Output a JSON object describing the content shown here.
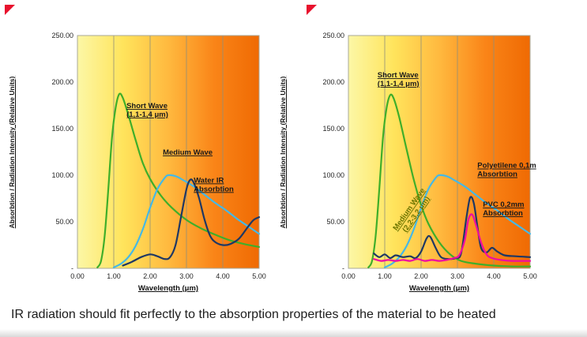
{
  "caption": "IR radiation should fit perfectly to the absorption properties of the material to be heated",
  "decor": {
    "corner_marker_color": "#e8112d"
  },
  "chart_data": [
    {
      "type": "line",
      "title": "",
      "xlabel": "Wavelength (μm)",
      "ylabel": "Absorbtion / Radiation Intensity (Relative Units)",
      "xlim": [
        0,
        5
      ],
      "ylim": [
        0,
        250
      ],
      "grid": "vertical",
      "grid_x": [
        1,
        2,
        3,
        4
      ],
      "x_ticks": {
        "labels": [
          "0.00",
          "1.00",
          "2.00",
          "3.00",
          "4.00",
          "5.00"
        ],
        "values": [
          0,
          1,
          2,
          3,
          4,
          5
        ]
      },
      "y_ticks": {
        "labels": [
          "250.00",
          "200.00",
          "150.00",
          "100.00",
          "50.00",
          "-"
        ],
        "values": [
          250,
          200,
          150,
          100,
          50,
          0
        ]
      },
      "background_gradient": [
        "#fcf7a6",
        "#ffe45c",
        "#ffb93f",
        "#fa8518",
        "#ef6a03"
      ],
      "series": [
        {
          "name": "Short Wave (1,1-1,4 μm)",
          "color": "#3fae2a",
          "points": [
            [
              0.55,
              1
            ],
            [
              0.65,
              8
            ],
            [
              0.75,
              35
            ],
            [
              0.85,
              85
            ],
            [
              0.95,
              140
            ],
            [
              1.05,
              172
            ],
            [
              1.15,
              187
            ],
            [
              1.25,
              183
            ],
            [
              1.4,
              165
            ],
            [
              1.6,
              138
            ],
            [
              1.8,
              113
            ],
            [
              2.0,
              96
            ],
            [
              2.3,
              78
            ],
            [
              2.6,
              65
            ],
            [
              3.0,
              52
            ],
            [
              3.4,
              43
            ],
            [
              3.8,
              36
            ],
            [
              4.2,
              30
            ],
            [
              4.6,
              26
            ],
            [
              5.0,
              23
            ]
          ]
        },
        {
          "name": "Medium Wave",
          "color": "#45b8e6",
          "points": [
            [
              1.0,
              1
            ],
            [
              1.2,
              5
            ],
            [
              1.4,
              12
            ],
            [
              1.6,
              24
            ],
            [
              1.8,
              42
            ],
            [
              2.0,
              65
            ],
            [
              2.2,
              85
            ],
            [
              2.4,
              97
            ],
            [
              2.5,
              100
            ],
            [
              2.7,
              99
            ],
            [
              2.9,
              95
            ],
            [
              3.2,
              88
            ],
            [
              3.5,
              79
            ],
            [
              3.8,
              70
            ],
            [
              4.1,
              62
            ],
            [
              4.4,
              53
            ],
            [
              4.7,
              45
            ],
            [
              5.0,
              37
            ]
          ]
        },
        {
          "name": "Water IR Absorbtion",
          "color": "#1f3864",
          "points": [
            [
              1.25,
              3
            ],
            [
              1.5,
              7
            ],
            [
              1.75,
              12
            ],
            [
              2.0,
              15
            ],
            [
              2.2,
              13
            ],
            [
              2.4,
              10
            ],
            [
              2.55,
              12
            ],
            [
              2.7,
              25
            ],
            [
              2.85,
              55
            ],
            [
              3.0,
              85
            ],
            [
              3.1,
              95
            ],
            [
              3.2,
              92
            ],
            [
              3.35,
              75
            ],
            [
              3.5,
              52
            ],
            [
              3.65,
              35
            ],
            [
              3.8,
              28
            ],
            [
              4.0,
              25
            ],
            [
              4.2,
              26
            ],
            [
              4.45,
              32
            ],
            [
              4.7,
              45
            ],
            [
              4.85,
              52
            ],
            [
              5.0,
              55
            ]
          ]
        }
      ],
      "annotations": [
        {
          "lines": [
            "Short Wave",
            "(1,1-1,4 μm)"
          ],
          "x": 1.35,
          "y": 172,
          "rotate": 0,
          "anchor": "start",
          "color": "#1a1a1a"
        },
        {
          "lines": [
            "Medium Wave"
          ],
          "x": 2.35,
          "y": 122,
          "rotate": 0,
          "anchor": "start",
          "color": "#1a1a1a"
        },
        {
          "lines": [
            "Water IR",
            "Absorbtion"
          ],
          "x": 3.2,
          "y": 92,
          "rotate": 0,
          "anchor": "start",
          "color": "#1a1a1a"
        }
      ]
    },
    {
      "type": "line",
      "title": "",
      "xlabel": "Wavelength (μm)",
      "ylabel": "Absorbtion / Radiation Intensity (Relative Units)",
      "xlim": [
        0,
        5
      ],
      "ylim": [
        0,
        250
      ],
      "grid": "vertical",
      "grid_x": [
        1,
        2,
        3,
        4
      ],
      "x_ticks": {
        "labels": [
          "0.00",
          "1.00",
          "2.00",
          "3.00",
          "4.00",
          "5.00"
        ],
        "values": [
          0,
          1,
          2,
          3,
          4,
          5
        ]
      },
      "y_ticks": {
        "labels": [
          "250.00",
          "200.00",
          "150.00",
          "100.00",
          "50.00",
          "-"
        ],
        "values": [
          250,
          200,
          150,
          100,
          50,
          0
        ]
      },
      "background_gradient": [
        "#fcf7a6",
        "#ffe45c",
        "#ffb93f",
        "#fa8518",
        "#ef6a03"
      ],
      "series": [
        {
          "name": "Short Wave (1,1-1,4 μm)",
          "color": "#3fae2a",
          "points": [
            [
              0.55,
              1
            ],
            [
              0.65,
              8
            ],
            [
              0.75,
              35
            ],
            [
              0.85,
              85
            ],
            [
              0.95,
              140
            ],
            [
              1.05,
              172
            ],
            [
              1.15,
              186
            ],
            [
              1.25,
              182
            ],
            [
              1.4,
              162
            ],
            [
              1.6,
              128
            ],
            [
              1.8,
              95
            ],
            [
              2.0,
              68
            ],
            [
              2.2,
              48
            ],
            [
              2.5,
              28
            ],
            [
              2.8,
              15
            ],
            [
              3.1,
              8
            ],
            [
              3.5,
              5
            ],
            [
              4.0,
              3
            ],
            [
              4.5,
              2
            ],
            [
              5.0,
              2
            ]
          ]
        },
        {
          "name": "Medium Wave (2,2-3,2 μm)",
          "color": "#45b8e6",
          "points": [
            [
              1.0,
              1
            ],
            [
              1.2,
              5
            ],
            [
              1.4,
              12
            ],
            [
              1.6,
              24
            ],
            [
              1.8,
              42
            ],
            [
              2.0,
              65
            ],
            [
              2.2,
              85
            ],
            [
              2.4,
              97
            ],
            [
              2.5,
              100
            ],
            [
              2.7,
              99
            ],
            [
              2.9,
              95
            ],
            [
              3.2,
              88
            ],
            [
              3.5,
              79
            ],
            [
              3.8,
              70
            ],
            [
              4.1,
              62
            ],
            [
              4.4,
              53
            ],
            [
              4.7,
              45
            ],
            [
              5.0,
              37
            ]
          ]
        },
        {
          "name": "Polyetilene 0,1m Absorbtion",
          "color": "#1f3864",
          "points": [
            [
              0.7,
              16
            ],
            [
              0.85,
              12
            ],
            [
              1.0,
              15
            ],
            [
              1.15,
              11
            ],
            [
              1.3,
              14
            ],
            [
              1.5,
              12
            ],
            [
              1.7,
              13
            ],
            [
              1.85,
              11
            ],
            [
              2.0,
              18
            ],
            [
              2.15,
              32
            ],
            [
              2.25,
              34
            ],
            [
              2.4,
              22
            ],
            [
              2.55,
              12
            ],
            [
              2.75,
              10
            ],
            [
              2.95,
              11
            ],
            [
              3.1,
              16
            ],
            [
              3.25,
              55
            ],
            [
              3.35,
              76
            ],
            [
              3.45,
              70
            ],
            [
              3.55,
              45
            ],
            [
              3.65,
              22
            ],
            [
              3.8,
              17
            ],
            [
              3.95,
              22
            ],
            [
              4.1,
              18
            ],
            [
              4.3,
              14
            ],
            [
              4.6,
              13
            ],
            [
              5.0,
              12
            ]
          ]
        },
        {
          "name": "PVC 0,2mm Absorbtion",
          "color": "#ef0da0",
          "points": [
            [
              0.7,
              10
            ],
            [
              0.9,
              8
            ],
            [
              1.1,
              9
            ],
            [
              1.3,
              8
            ],
            [
              1.5,
              9
            ],
            [
              1.7,
              8
            ],
            [
              1.9,
              10
            ],
            [
              2.1,
              8
            ],
            [
              2.3,
              9
            ],
            [
              2.5,
              8
            ],
            [
              2.7,
              9
            ],
            [
              2.9,
              11
            ],
            [
              3.05,
              14
            ],
            [
              3.2,
              30
            ],
            [
              3.3,
              52
            ],
            [
              3.4,
              58
            ],
            [
              3.5,
              48
            ],
            [
              3.65,
              28
            ],
            [
              3.8,
              15
            ],
            [
              3.95,
              11
            ],
            [
              4.2,
              9
            ],
            [
              4.5,
              8
            ],
            [
              5.0,
              8
            ]
          ]
        }
      ],
      "annotations": [
        {
          "lines": [
            "Short Wave",
            "(1,1-1,4 μm)"
          ],
          "x": 0.8,
          "y": 205,
          "rotate": 0,
          "anchor": "start",
          "color": "#1a1a1a"
        },
        {
          "lines": [
            "Medium Wave",
            "(2,2-3,2 μm)"
          ],
          "x": 1.72,
          "y": 62,
          "rotate": -55,
          "anchor": "middle",
          "color": "#6b7500"
        },
        {
          "lines": [
            "Polyetilene 0,1m",
            "Absorbtion"
          ],
          "x": 3.55,
          "y": 108,
          "rotate": 0,
          "anchor": "start",
          "color": "#1a1a1a"
        },
        {
          "lines": [
            "PVC 0,2mm",
            "Absorbtion"
          ],
          "x": 3.7,
          "y": 66,
          "rotate": 0,
          "anchor": "start",
          "color": "#1a1a1a"
        }
      ]
    }
  ]
}
